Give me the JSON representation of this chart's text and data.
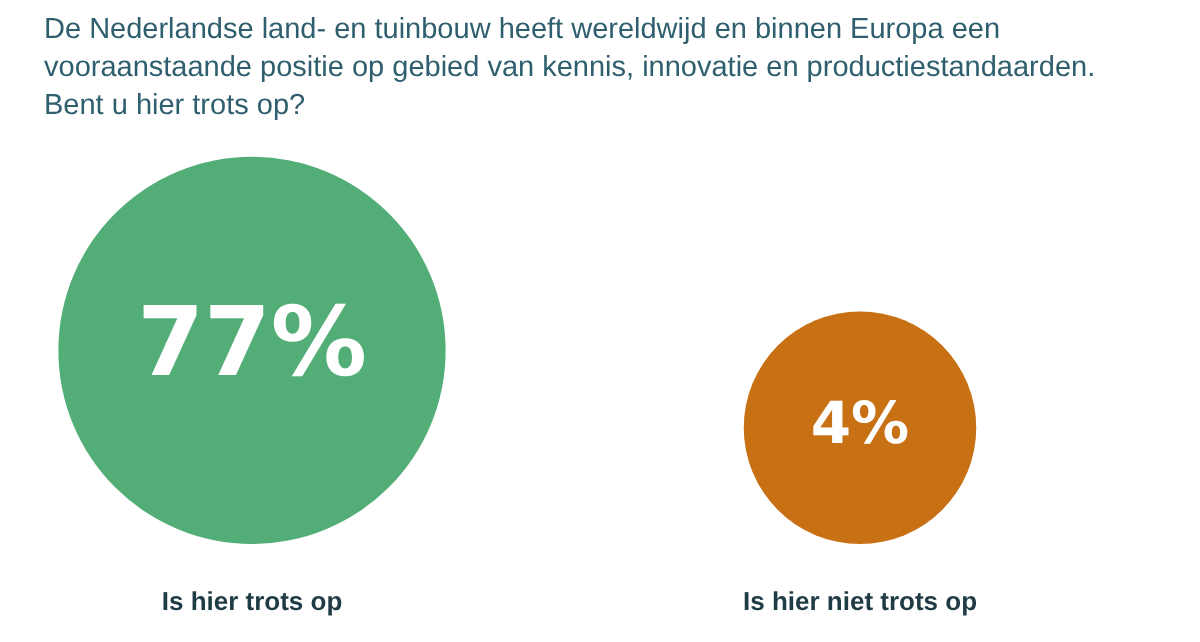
{
  "chart_data": {
    "type": "other",
    "title": "De Nederlandse land- en tuinbouw heeft wereldwijd en binnen Europa een vooraanstaande positie op gebied van kennis, innovatie en productiestandaarden. Bent u hier trots op?",
    "categories": [
      "Is hier trots op",
      "Is hier niet trots op"
    ],
    "values": [
      77,
      4
    ],
    "value_labels": [
      "77%",
      "4%"
    ],
    "colors": [
      "#52ad77",
      "#c87114"
    ]
  }
}
